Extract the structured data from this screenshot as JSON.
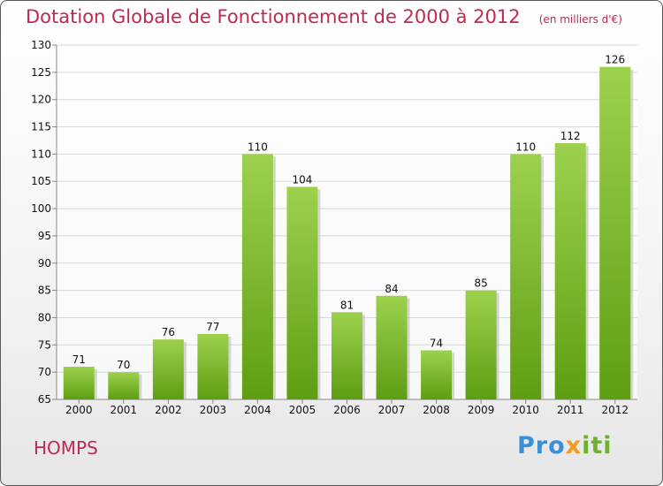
{
  "header": {
    "title": "Dotation Globale de Fonctionnement de 2000 à 2012",
    "unit": "(en milliers d'€)"
  },
  "footer": {
    "commune": "HOMPS",
    "brand": {
      "p1": "Pro",
      "p2": "x",
      "p3": "iti"
    }
  },
  "colors": {
    "title": "#c0294f",
    "bar_top": "#9dd14d",
    "bar_bottom": "#5e9e12",
    "grid": "#d8d8d8"
  },
  "chart_data": {
    "type": "bar",
    "title": "Dotation Globale de Fonctionnement de 2000 à 2012",
    "categories": [
      "2000",
      "2001",
      "2002",
      "2003",
      "2004",
      "2005",
      "2006",
      "2007",
      "2008",
      "2009",
      "2010",
      "2011",
      "2012"
    ],
    "values": [
      71,
      70,
      76,
      77,
      110,
      104,
      81,
      84,
      74,
      85,
      110,
      112,
      126
    ],
    "ylim": [
      65,
      130
    ],
    "yticks": [
      65,
      70,
      75,
      80,
      85,
      90,
      95,
      100,
      105,
      110,
      115,
      120,
      125,
      130
    ],
    "grid": true
  }
}
